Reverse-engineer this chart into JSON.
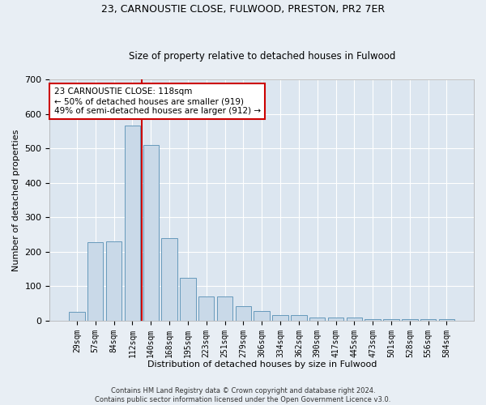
{
  "title1": "23, CARNOUSTIE CLOSE, FULWOOD, PRESTON, PR2 7ER",
  "title2": "Size of property relative to detached houses in Fulwood",
  "xlabel": "Distribution of detached houses by size in Fulwood",
  "ylabel": "Number of detached properties",
  "categories": [
    "29sqm",
    "57sqm",
    "84sqm",
    "112sqm",
    "140sqm",
    "168sqm",
    "195sqm",
    "223sqm",
    "251sqm",
    "279sqm",
    "306sqm",
    "334sqm",
    "362sqm",
    "390sqm",
    "417sqm",
    "445sqm",
    "473sqm",
    "501sqm",
    "528sqm",
    "556sqm",
    "584sqm"
  ],
  "values": [
    25,
    228,
    230,
    565,
    510,
    240,
    125,
    70,
    70,
    42,
    27,
    15,
    15,
    10,
    10,
    10,
    5,
    5,
    5,
    5,
    5
  ],
  "bar_color": "#c9d9e8",
  "bar_edge_color": "#6699bb",
  "vline_x": 3.5,
  "vline_color": "#cc0000",
  "annotation_text": "23 CARNOUSTIE CLOSE: 118sqm\n← 50% of detached houses are smaller (919)\n49% of semi-detached houses are larger (912) →",
  "annotation_box_color": "#ffffff",
  "annotation_box_edge": "#cc0000",
  "ylim": [
    0,
    700
  ],
  "yticks": [
    0,
    100,
    200,
    300,
    400,
    500,
    600,
    700
  ],
  "footer": "Contains HM Land Registry data © Crown copyright and database right 2024.\nContains public sector information licensed under the Open Government Licence v3.0.",
  "bg_color": "#e8eef4",
  "plot_bg_color": "#dce6f0",
  "grid_color": "#ffffff",
  "title1_fontsize": 9,
  "title2_fontsize": 8.5,
  "xlabel_fontsize": 8,
  "ylabel_fontsize": 8
}
